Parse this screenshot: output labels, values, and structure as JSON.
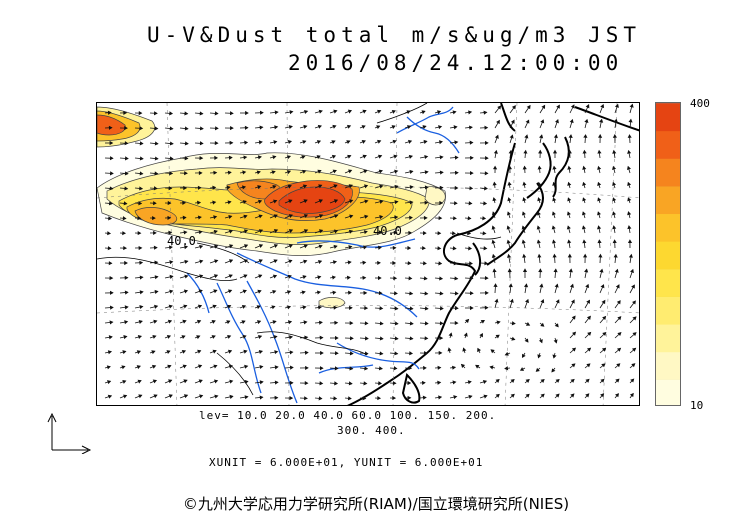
{
  "title": {
    "line1": "U-V&Dust total m/s&ug/m3 JST",
    "line2": "2016/08/24.12:00:00"
  },
  "map": {
    "contour_labels": [
      "40.0",
      "40.0"
    ],
    "dust_color_ramp": [
      "#fffde0",
      "#fff8c4",
      "#fff39a",
      "#ffec70",
      "#ffe54b",
      "#fdd830",
      "#fcc32a",
      "#f9a524",
      "#f5841e",
      "#f06018",
      "#e54412"
    ]
  },
  "colorbar": {
    "max_label": "400",
    "min_label": "10"
  },
  "levels": {
    "line1": "lev= 10.0 20.0 40.0 60.0 100. 150. 200.",
    "line2": "300. 400."
  },
  "units_text": "XUNIT = 6.000E+01, YUNIT = 6.000E+01",
  "copyright": "©九州大学応用力学研究所(RIAM)/国立環境研究所(NIES)"
}
